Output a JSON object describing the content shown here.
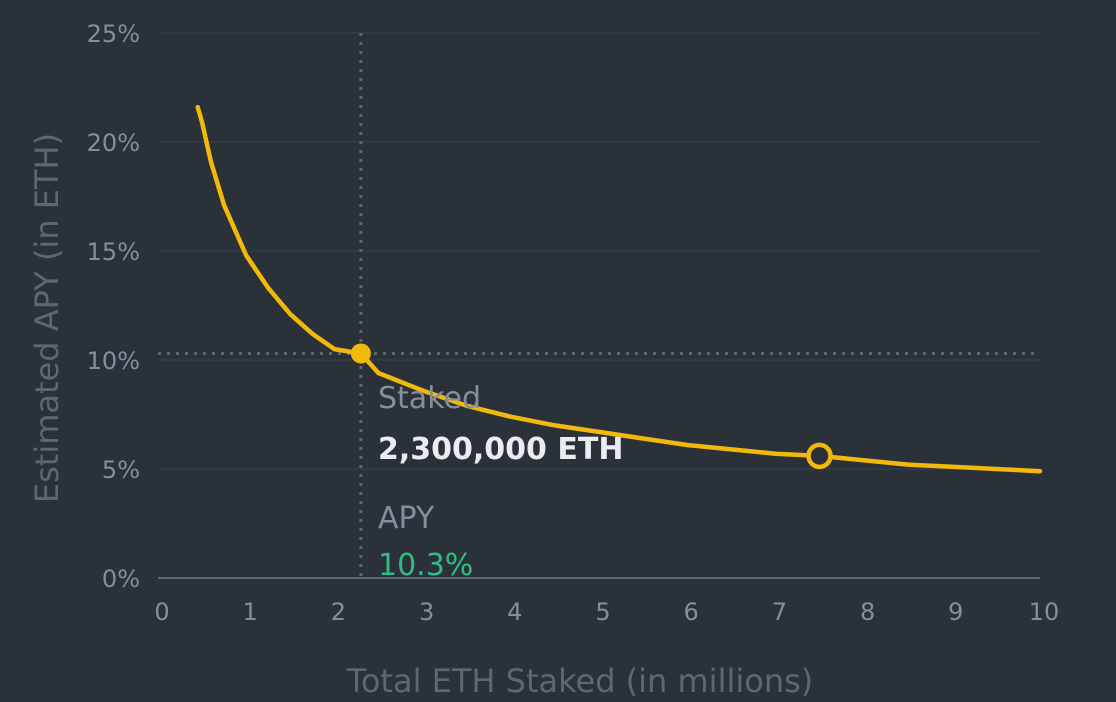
{
  "chart_data": {
    "type": "line",
    "xlabel": "Total ETH Staked (in millions)",
    "ylabel": "Estimated APY (in ETH)",
    "xlim": [
      0,
      10
    ],
    "ylim": [
      0,
      25
    ],
    "x_ticks": [
      "0",
      "1",
      "2",
      "3",
      "4",
      "5",
      "6",
      "7",
      "8",
      "9",
      "10"
    ],
    "y_ticks": [
      "0%",
      "5%",
      "10%",
      "15%",
      "20%",
      "25%"
    ],
    "grid": true,
    "series": [
      {
        "x": [
          0.45,
          0.5,
          0.6,
          0.75,
          1.0,
          1.25,
          1.5,
          1.75,
          2.0,
          2.3,
          2.5,
          3.0,
          3.5,
          4.0,
          4.5,
          5.0,
          5.5,
          6.0,
          6.5,
          7.0,
          7.5,
          8.0,
          8.5,
          9.0,
          9.5,
          10.0
        ],
        "values": [
          21.6,
          20.9,
          19.1,
          17.1,
          14.8,
          13.3,
          12.1,
          11.2,
          10.5,
          10.3,
          9.4,
          8.6,
          7.9,
          7.4,
          7.0,
          6.7,
          6.4,
          6.1,
          5.9,
          5.7,
          5.6,
          5.4,
          5.2,
          5.1,
          5.0,
          4.9
        ]
      }
    ],
    "colors": {
      "line": "#f0b90b",
      "grid": "#363c45",
      "crosshair": "#5e6673",
      "apy_value": "#2ebd85"
    },
    "selected_point": {
      "x": 2.3,
      "y": 10.3
    },
    "marker_point": {
      "x": 7.5,
      "y": 5.6
    },
    "tooltip": {
      "staked_label": "Staked",
      "staked_value": "2,300,000 ETH",
      "apy_label": "APY",
      "apy_value": "10.3%"
    }
  }
}
